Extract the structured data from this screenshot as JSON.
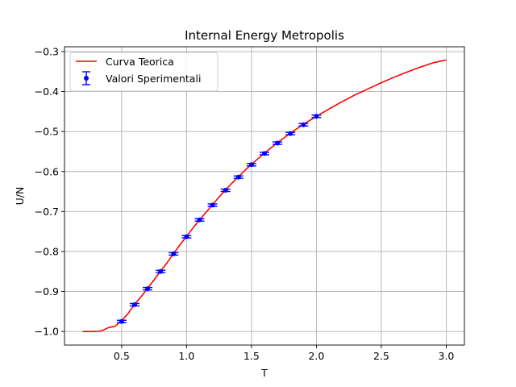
{
  "chart_data": {
    "type": "line",
    "title": "Internal Energy Metropolis",
    "xlabel": "T",
    "ylabel": "U/N",
    "xlim": [
      0.06,
      3.14
    ],
    "ylim": [
      -1.034,
      -0.288
    ],
    "xticks": [
      0.5,
      1.0,
      1.5,
      2.0,
      2.5,
      3.0
    ],
    "xtick_labels": [
      "0.5",
      "1.0",
      "1.5",
      "2.0",
      "2.5",
      "3.0"
    ],
    "yticks": [
      -1.0,
      -0.9,
      -0.8,
      -0.7,
      -0.6,
      -0.5,
      -0.4,
      -0.3
    ],
    "ytick_labels": [
      "−1.0",
      "−0.9",
      "−0.8",
      "−0.7",
      "−0.6",
      "−0.5",
      "−0.4",
      "−0.3"
    ],
    "grid": true,
    "legend_position": "top-left",
    "series": [
      {
        "name": "Curva Teorica",
        "kind": "line",
        "color": "#ff0000",
        "x": [
          0.2,
          0.25,
          0.3,
          0.35,
          0.4,
          0.45,
          0.5,
          0.55,
          0.6,
          0.65,
          0.7,
          0.75,
          0.8,
          0.85,
          0.9,
          0.95,
          1.0,
          1.05,
          1.1,
          1.15,
          1.2,
          1.25,
          1.3,
          1.35,
          1.4,
          1.45,
          1.5,
          1.6,
          1.7,
          1.8,
          1.9,
          2.0,
          2.1,
          2.2,
          2.3,
          2.4,
          2.5,
          2.6,
          2.7,
          2.8,
          2.9,
          3.0
        ],
        "y": [
          -1.0,
          -1.0,
          -1.0,
          -0.998,
          -0.99,
          -0.987,
          -0.973,
          -0.955,
          -0.932,
          -0.913,
          -0.892,
          -0.871,
          -0.849,
          -0.828,
          -0.805,
          -0.783,
          -0.762,
          -0.741,
          -0.721,
          -0.702,
          -0.683,
          -0.664,
          -0.646,
          -0.629,
          -0.613,
          -0.597,
          -0.582,
          -0.554,
          -0.528,
          -0.504,
          -0.482,
          -0.462,
          -0.443,
          -0.425,
          -0.408,
          -0.393,
          -0.378,
          -0.364,
          -0.351,
          -0.339,
          -0.328,
          -0.321
        ]
      },
      {
        "name": "Valori Sperimentali",
        "kind": "errorbar",
        "color": "#0000ff",
        "x": [
          0.5,
          0.6,
          0.7,
          0.8,
          0.9,
          1.0,
          1.1,
          1.2,
          1.3,
          1.4,
          1.5,
          1.6,
          1.7,
          1.8,
          1.9,
          2.0
        ],
        "y": [
          -0.975,
          -0.933,
          -0.893,
          -0.85,
          -0.806,
          -0.763,
          -0.721,
          -0.684,
          -0.647,
          -0.614,
          -0.583,
          -0.555,
          -0.529,
          -0.505,
          -0.483,
          -0.462
        ],
        "yerr": [
          0.003,
          0.003,
          0.003,
          0.003,
          0.003,
          0.003,
          0.003,
          0.003,
          0.003,
          0.003,
          0.003,
          0.003,
          0.003,
          0.003,
          0.003,
          0.003
        ]
      }
    ]
  }
}
